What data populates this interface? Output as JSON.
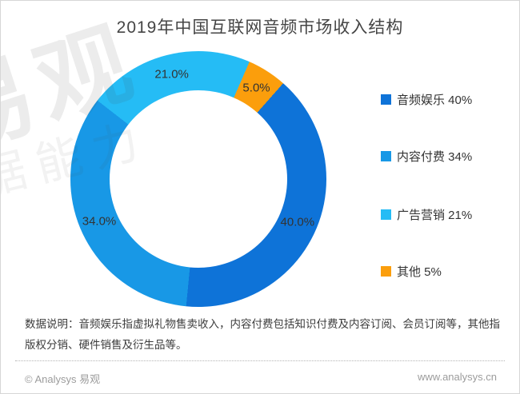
{
  "title": "2019年中国互联网音频市场收入结构",
  "watermark": {
    "line1": "易观",
    "line2": "据能力"
  },
  "chart_data": {
    "type": "pie",
    "subtype": "donut",
    "title": "2019年中国互联网音频市场收入结构",
    "start_angle_deg": 41.5,
    "legend_position": "right",
    "slices": [
      {
        "name": "音频娱乐",
        "value": 40,
        "label": "40.0%",
        "legend_label": "音频娱乐 40%",
        "color": "#0E73D8"
      },
      {
        "name": "内容付费",
        "value": 34,
        "label": "34.0%",
        "legend_label": "内容付费 34%",
        "color": "#1898E6"
      },
      {
        "name": "广告营销",
        "value": 21,
        "label": "21.0%",
        "legend_label": "广告营销 21%",
        "color": "#25BCF5"
      },
      {
        "name": "其他",
        "value": 5,
        "label": "5.0%",
        "legend_label": "其他 5%",
        "color": "#FB9E0C"
      }
    ]
  },
  "note": "数据说明：音频娱乐指虚拟礼物售卖收入，内容付费包括知识付费及内容订阅、会员订阅等，其他指版权分销、硬件销售及衍生品等。",
  "footer": {
    "left": "© Analysys 易观",
    "right": "www.analysys.cn"
  }
}
